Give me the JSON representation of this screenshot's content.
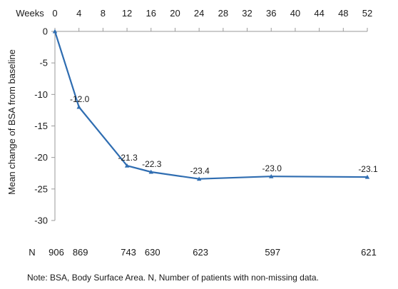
{
  "chart_data": {
    "type": "line",
    "x_axis_label": "Weeks",
    "ylabel": "Mean change of BSA from baseline",
    "x_ticks": [
      0,
      4,
      8,
      12,
      16,
      20,
      24,
      28,
      32,
      36,
      40,
      44,
      48,
      52
    ],
    "xlim": [
      0,
      52
    ],
    "y_ticks": [
      0,
      -5,
      -10,
      -15,
      -20,
      -25,
      -30
    ],
    "ylim": [
      -30,
      0
    ],
    "x_axis_position": "top",
    "grid": false,
    "legend": "none",
    "series_color": "#2f6db1",
    "marker": "triangle",
    "points": [
      {
        "x": 0,
        "y": 0,
        "label": ""
      },
      {
        "x": 4,
        "y": -12.0,
        "label": "-12.0"
      },
      {
        "x": 12,
        "y": -21.3,
        "label": "-21.3"
      },
      {
        "x": 16,
        "y": -22.3,
        "label": "-22.3"
      },
      {
        "x": 24,
        "y": -23.4,
        "label": "-23.4"
      },
      {
        "x": 36,
        "y": -23.0,
        "label": "-23.0"
      },
      {
        "x": 52,
        "y": -23.1,
        "label": "-23.1"
      }
    ],
    "n_row": {
      "label": "N",
      "values": [
        {
          "x": 0,
          "n": "906"
        },
        {
          "x": 4,
          "n": "869"
        },
        {
          "x": 12,
          "n": "743"
        },
        {
          "x": 16,
          "n": "630"
        },
        {
          "x": 24,
          "n": "623"
        },
        {
          "x": 36,
          "n": "597"
        },
        {
          "x": 52,
          "n": "621"
        }
      ]
    }
  },
  "note": "Note: BSA, Body Surface Area. N, Number of patients with non-missing data."
}
